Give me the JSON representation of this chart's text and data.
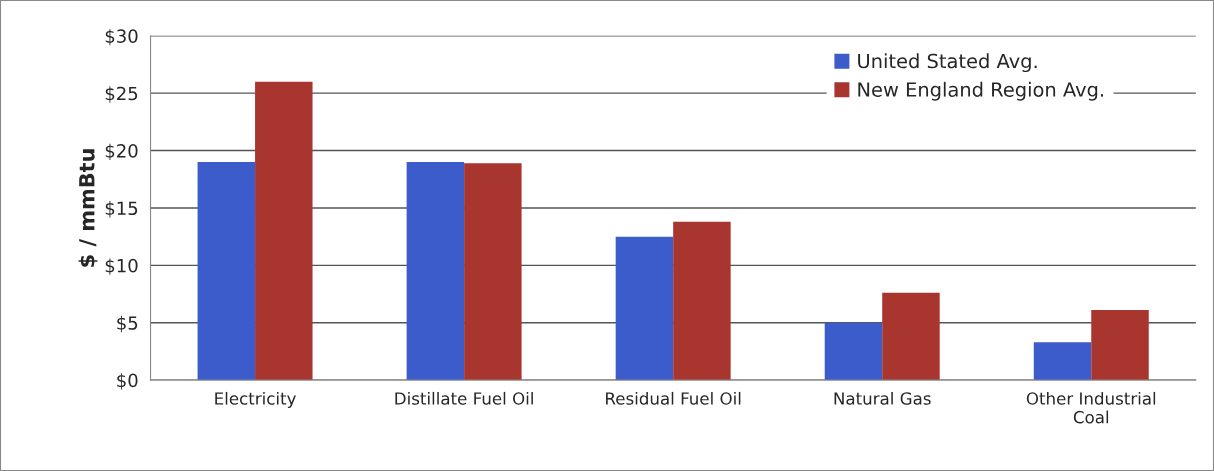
{
  "chart_data": {
    "type": "bar",
    "ylabel": "$ / mmBtu",
    "categories": [
      "Electricity",
      "Distillate Fuel Oil",
      "Residual Fuel Oil",
      "Natural Gas",
      "Other Industrial Coal"
    ],
    "series": [
      {
        "name": "United Stated Avg.",
        "color": "#3c5ccc",
        "values": [
          19.0,
          19.0,
          12.5,
          5.0,
          3.3
        ]
      },
      {
        "name": "New England Region Avg.",
        "color": "#a8362f",
        "values": [
          26.0,
          18.9,
          13.8,
          7.6,
          6.1
        ]
      }
    ],
    "ylim": [
      0,
      30
    ],
    "yticks": [
      {
        "value": 0,
        "label": "$0"
      },
      {
        "value": 5,
        "label": "$5"
      },
      {
        "value": 10,
        "label": "$10"
      },
      {
        "value": 15,
        "label": "$15"
      },
      {
        "value": 20,
        "label": "$20"
      },
      {
        "value": 25,
        "label": "$25"
      },
      {
        "value": 30,
        "label": "$30"
      }
    ],
    "grid": "y",
    "legend": "top right"
  }
}
